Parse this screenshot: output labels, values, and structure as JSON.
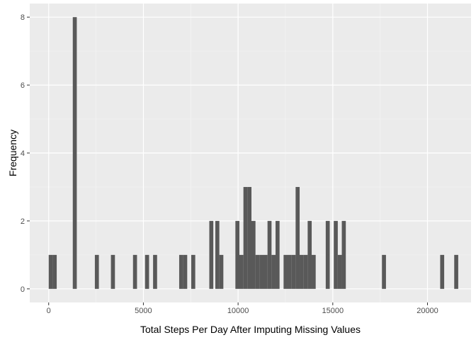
{
  "chart_data": {
    "type": "bar",
    "xlabel": "Total Steps Per Day After Imputing Missing Values",
    "ylabel": "Frequency",
    "xlim": [
      -1000,
      22300
    ],
    "ylim": [
      -0.4,
      8.4
    ],
    "x_ticks": [
      0,
      5000,
      10000,
      15000,
      20000
    ],
    "y_ticks": [
      0,
      2,
      4,
      6,
      8
    ],
    "bin_width": 212,
    "bars": [
      {
        "x": 0,
        "count": 1
      },
      {
        "x": 212,
        "count": 1
      },
      {
        "x": 1272,
        "count": 8
      },
      {
        "x": 2438,
        "count": 1
      },
      {
        "x": 3286,
        "count": 1
      },
      {
        "x": 4452,
        "count": 1
      },
      {
        "x": 5088,
        "count": 1
      },
      {
        "x": 5512,
        "count": 1
      },
      {
        "x": 6890,
        "count": 1
      },
      {
        "x": 7102,
        "count": 1
      },
      {
        "x": 7526,
        "count": 1
      },
      {
        "x": 8480,
        "count": 2
      },
      {
        "x": 8798,
        "count": 2
      },
      {
        "x": 9010,
        "count": 1
      },
      {
        "x": 9858,
        "count": 2
      },
      {
        "x": 10070,
        "count": 1
      },
      {
        "x": 10282,
        "count": 3
      },
      {
        "x": 10494,
        "count": 3
      },
      {
        "x": 10706,
        "count": 2
      },
      {
        "x": 10918,
        "count": 1
      },
      {
        "x": 11130,
        "count": 1
      },
      {
        "x": 11342,
        "count": 1
      },
      {
        "x": 11554,
        "count": 2
      },
      {
        "x": 11766,
        "count": 1
      },
      {
        "x": 11978,
        "count": 2
      },
      {
        "x": 12402,
        "count": 1
      },
      {
        "x": 12614,
        "count": 1
      },
      {
        "x": 12826,
        "count": 1
      },
      {
        "x": 13038,
        "count": 3
      },
      {
        "x": 13250,
        "count": 1
      },
      {
        "x": 13462,
        "count": 1
      },
      {
        "x": 13674,
        "count": 2
      },
      {
        "x": 13886,
        "count": 1
      },
      {
        "x": 14628,
        "count": 2
      },
      {
        "x": 15052,
        "count": 2
      },
      {
        "x": 15264,
        "count": 1
      },
      {
        "x": 15476,
        "count": 2
      },
      {
        "x": 17596,
        "count": 1
      },
      {
        "x": 20670,
        "count": 1
      },
      {
        "x": 21412,
        "count": 1
      }
    ],
    "grid": true,
    "colors": {
      "panel_background": "#ebebeb",
      "grid_major": "#ffffff",
      "grid_minor": "#f5f5f5",
      "bar_fill": "#595959",
      "tick_color": "#333333"
    }
  }
}
